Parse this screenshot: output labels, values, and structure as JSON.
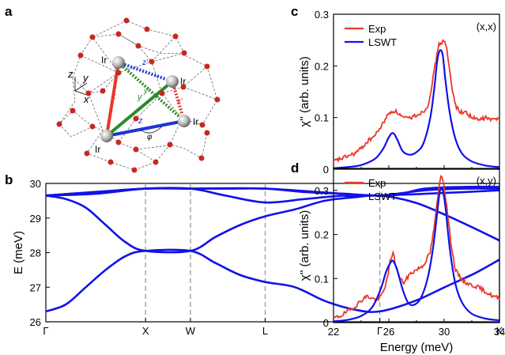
{
  "panels": {
    "a": "a",
    "b": "b",
    "c": "c",
    "d": "d"
  },
  "structure": {
    "atom_label": "Ir",
    "bond_labels": [
      "x",
      "y",
      "z"
    ],
    "bond_label_primed": [
      "x'",
      "y'",
      "z'"
    ],
    "axes_labels": [
      "z",
      "y",
      "x"
    ],
    "angle_label": "φ",
    "colors": {
      "x": "#e8382c",
      "y": "#2a8a2a",
      "z": "#1f35d8",
      "oxygen": "#c8281e",
      "iridium": "#b8b8b8"
    }
  },
  "chart_data": [
    {
      "id": "b",
      "type": "line",
      "ylabel": "E (meV)",
      "ylim": [
        26,
        30
      ],
      "yticks": [
        26,
        27,
        28,
        29,
        30
      ],
      "xtick_labels": [
        "Γ",
        "X",
        "W",
        "L",
        "Γ",
        "K"
      ],
      "xtick_positions": [
        0,
        1,
        1.45,
        2.2,
        3.35,
        4.55
      ],
      "vlines_at": [
        1,
        1.45,
        2.2,
        3.35
      ],
      "series_color": "#1212e8",
      "series": [
        {
          "x": [
            0,
            0.2,
            0.4,
            0.6,
            0.8,
            1.0,
            1.45,
            1.7,
            1.95,
            2.2,
            2.5,
            2.8,
            3.1,
            3.35,
            3.7,
            4.0,
            4.3,
            4.55
          ],
          "y": [
            26.3,
            26.5,
            27.0,
            27.5,
            27.9,
            28.05,
            28.05,
            27.7,
            27.35,
            27.15,
            27.0,
            26.6,
            26.35,
            26.3,
            26.6,
            27.0,
            27.4,
            27.8
          ]
        },
        {
          "x": [
            0,
            0.2,
            0.4,
            0.6,
            0.8,
            1.0,
            1.45,
            1.7,
            1.95,
            2.2,
            2.5,
            2.8,
            3.1,
            3.35,
            3.7,
            4.0,
            4.3,
            4.55
          ],
          "y": [
            29.65,
            29.55,
            29.3,
            28.8,
            28.3,
            28.05,
            28.05,
            28.45,
            28.8,
            29.05,
            29.25,
            29.5,
            29.6,
            29.65,
            29.45,
            29.1,
            28.7,
            28.35
          ]
        },
        {
          "x": [
            0,
            0.5,
            1.0,
            1.45,
            1.8,
            2.2,
            2.6,
            3.0,
            3.35,
            3.8,
            4.2,
            4.55
          ],
          "y": [
            29.65,
            29.7,
            29.85,
            29.85,
            29.65,
            29.45,
            29.55,
            29.65,
            29.65,
            29.7,
            29.75,
            29.8
          ]
        },
        {
          "x": [
            0,
            0.5,
            1.0,
            1.45,
            1.8,
            2.2,
            2.6,
            3.0,
            3.35,
            3.8,
            4.2,
            4.55
          ],
          "y": [
            29.65,
            29.75,
            29.85,
            29.85,
            29.85,
            29.85,
            29.75,
            29.7,
            29.65,
            29.8,
            29.85,
            29.85
          ]
        },
        {
          "x": [
            0,
            1.0,
            1.45,
            2.2,
            3.35,
            3.8,
            4.2,
            4.55
          ],
          "y": [
            29.65,
            29.85,
            29.85,
            29.85,
            29.65,
            29.85,
            29.9,
            29.9
          ]
        }
      ]
    },
    {
      "id": "c",
      "type": "line",
      "annotation": "(x,x)",
      "ylabel": "χ'' (arb. units)",
      "ylim": [
        0,
        0.3
      ],
      "yticks": [
        0.0,
        0.1,
        0.2,
        0.3
      ],
      "xlim": [
        22,
        34
      ],
      "legend": "top-left",
      "series": [
        {
          "name": "Exp",
          "color": "#e8382c",
          "x": [
            22,
            22.5,
            23,
            23.5,
            24,
            24.5,
            25,
            25.5,
            25.8,
            26.1,
            26.4,
            26.7,
            27,
            27.3,
            27.6,
            28,
            28.4,
            28.8,
            29.1,
            29.4,
            29.6,
            29.8,
            30.0,
            30.2,
            30.4,
            30.6,
            30.9,
            31.2,
            31.6,
            32,
            32.5,
            33,
            33.5,
            34
          ],
          "y": [
            0.015,
            0.02,
            0.025,
            0.03,
            0.04,
            0.055,
            0.065,
            0.085,
            0.1,
            0.11,
            0.113,
            0.108,
            0.1,
            0.098,
            0.1,
            0.105,
            0.11,
            0.12,
            0.16,
            0.21,
            0.24,
            0.245,
            0.25,
            0.23,
            0.19,
            0.15,
            0.12,
            0.11,
            0.11,
            0.1,
            0.095,
            0.1,
            0.095,
            0.1
          ]
        },
        {
          "name": "LSWT",
          "color": "#1212e8",
          "x": [
            22,
            23,
            24,
            25,
            25.6,
            26,
            26.3,
            26.6,
            27,
            27.5,
            28,
            28.5,
            29,
            29.3,
            29.5,
            29.7,
            29.9,
            30.1,
            30.4,
            30.8,
            31.3,
            32,
            33,
            34
          ],
          "y": [
            0.002,
            0.004,
            0.008,
            0.02,
            0.04,
            0.062,
            0.07,
            0.058,
            0.035,
            0.028,
            0.033,
            0.05,
            0.1,
            0.16,
            0.21,
            0.23,
            0.22,
            0.17,
            0.11,
            0.06,
            0.03,
            0.015,
            0.007,
            0.004
          ]
        }
      ]
    },
    {
      "id": "d",
      "type": "line",
      "annotation": "(x,y)",
      "xlabel": "Energy (meV)",
      "ylabel": "χ'' (arb. units)",
      "ylim": [
        0,
        0.35
      ],
      "yticks": [
        0.0,
        0.1,
        0.2,
        0.3
      ],
      "xlim": [
        22,
        34
      ],
      "xticks": [
        22,
        26,
        30,
        34
      ],
      "legend": "top-left",
      "series": [
        {
          "name": "Exp",
          "color": "#e8382c",
          "x": [
            22,
            22.5,
            23,
            23.5,
            24,
            24.4,
            24.8,
            25.2,
            25.6,
            25.9,
            26.1,
            26.3,
            26.5,
            26.8,
            27.1,
            27.5,
            28,
            28.5,
            29,
            29.3,
            29.6,
            29.8,
            30.0,
            30.2,
            30.5,
            30.8,
            31.2,
            31.6,
            32,
            32.5,
            33,
            33.5,
            34
          ],
          "y": [
            0.01,
            0.015,
            0.025,
            0.035,
            0.05,
            0.06,
            0.055,
            0.05,
            0.07,
            0.1,
            0.14,
            0.16,
            0.13,
            0.1,
            0.09,
            0.11,
            0.12,
            0.13,
            0.16,
            0.22,
            0.3,
            0.34,
            0.31,
            0.26,
            0.18,
            0.12,
            0.1,
            0.09,
            0.085,
            0.08,
            0.07,
            0.06,
            0.055
          ]
        },
        {
          "name": "LSWT",
          "color": "#1212e8",
          "x": [
            22,
            23,
            24,
            24.8,
            25.4,
            25.8,
            26.1,
            26.3,
            26.6,
            27,
            27.4,
            27.8,
            28.3,
            28.8,
            29.2,
            29.5,
            29.7,
            29.9,
            30.1,
            30.4,
            30.8,
            31.3,
            32,
            33,
            34
          ],
          "y": [
            0.003,
            0.006,
            0.015,
            0.035,
            0.075,
            0.115,
            0.135,
            0.14,
            0.12,
            0.075,
            0.045,
            0.04,
            0.055,
            0.1,
            0.17,
            0.25,
            0.3,
            0.3,
            0.26,
            0.17,
            0.09,
            0.045,
            0.02,
            0.009,
            0.005
          ]
        }
      ]
    }
  ]
}
